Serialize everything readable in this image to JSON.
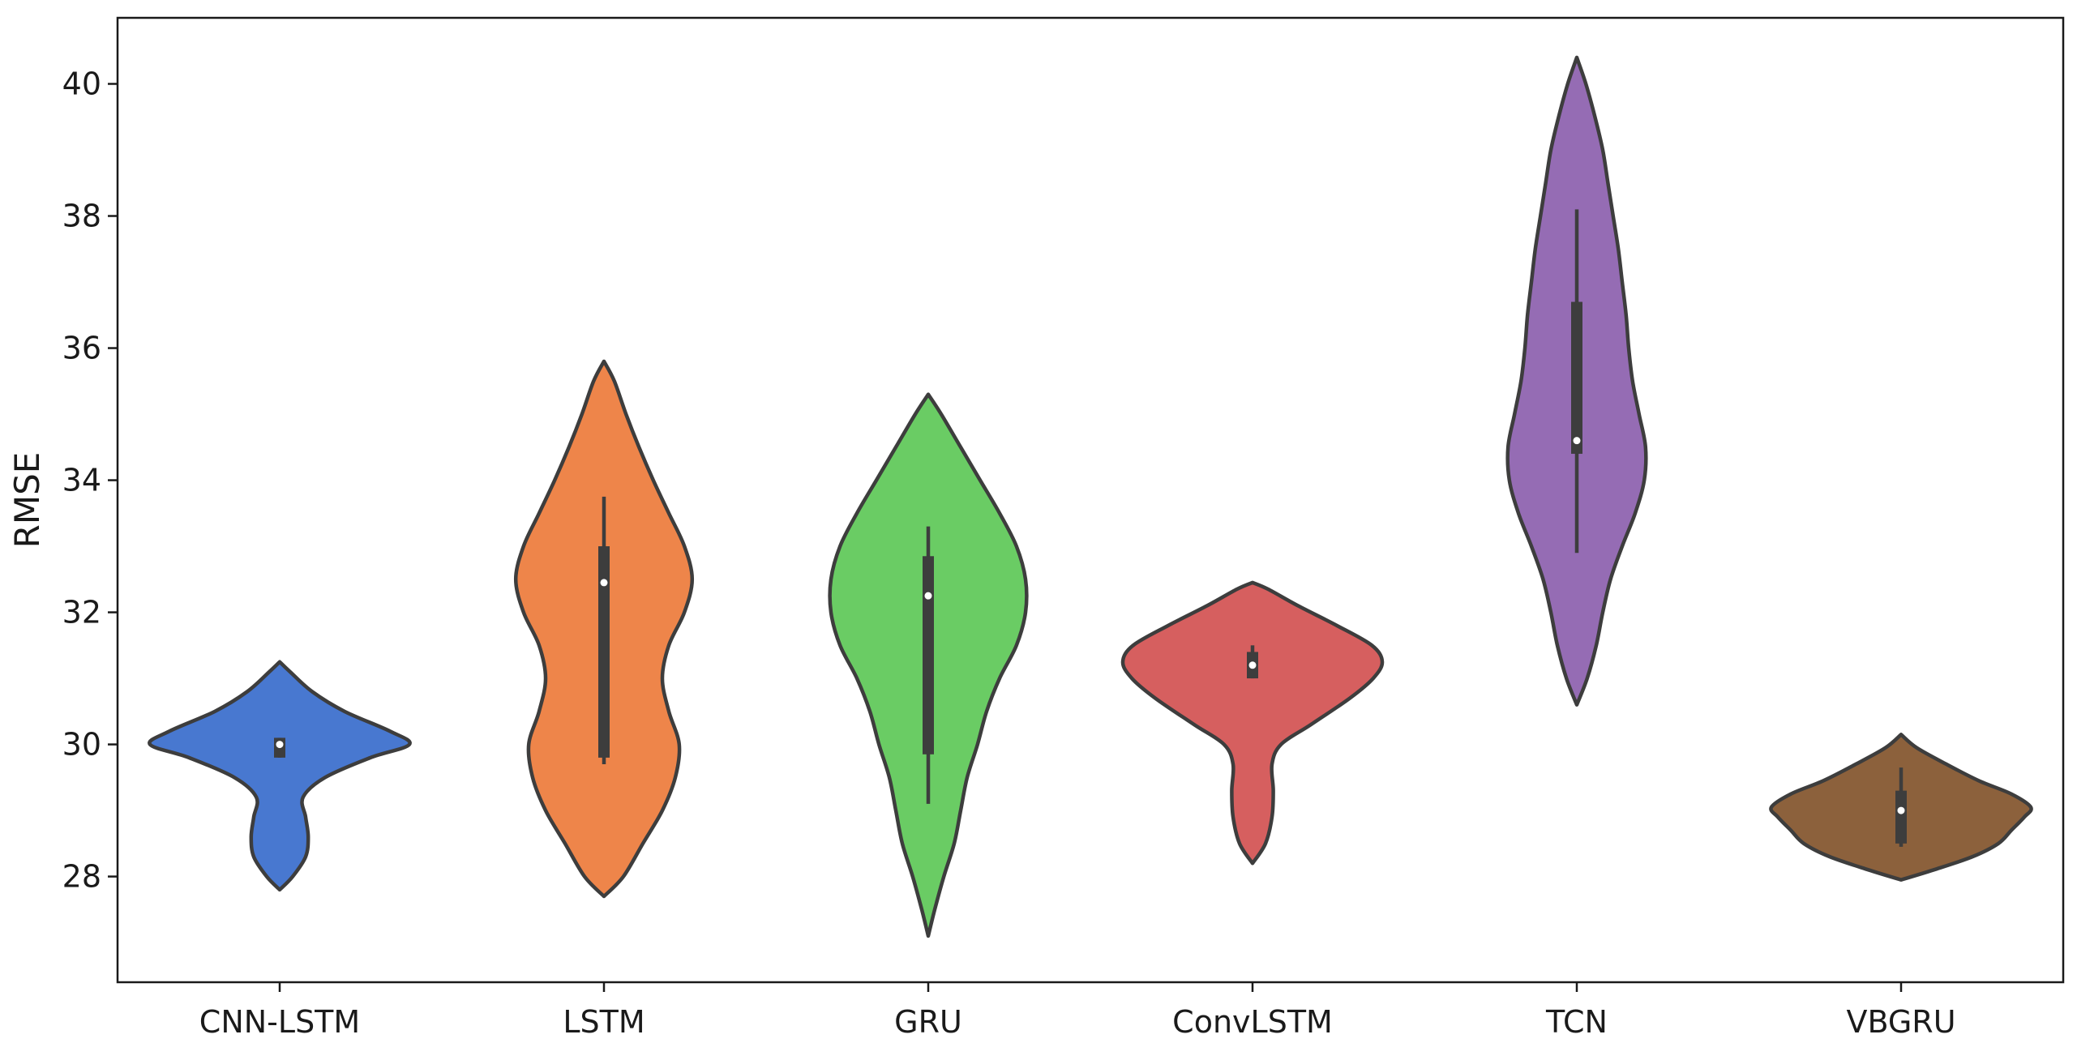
{
  "chart_data": {
    "type": "violin",
    "title": "",
    "xlabel": "",
    "ylabel": "RMSE",
    "ylim": [
      26.4,
      41.0
    ],
    "yticks": [
      28,
      30,
      32,
      34,
      36,
      38,
      40
    ],
    "grid": false,
    "categories": [
      "CNN-LSTM",
      "LSTM",
      "GRU",
      "ConvLSTM",
      "TCN",
      "VBGRU"
    ],
    "series": [
      {
        "category": "CNN-LSTM",
        "color": "#4878d0",
        "min": 27.8,
        "max": 31.25,
        "q1": 29.8,
        "median": 30.0,
        "q3": 30.1,
        "whisker_low": 29.8,
        "whisker_high": 30.1,
        "density": [
          [
            27.8,
            0
          ],
          [
            28.0,
            0.1
          ],
          [
            28.3,
            0.2
          ],
          [
            28.6,
            0.22
          ],
          [
            28.9,
            0.2
          ],
          [
            29.2,
            0.18
          ],
          [
            29.5,
            0.35
          ],
          [
            29.8,
            0.7
          ],
          [
            30.0,
            1.0
          ],
          [
            30.2,
            0.85
          ],
          [
            30.5,
            0.5
          ],
          [
            30.8,
            0.25
          ],
          [
            31.1,
            0.08
          ],
          [
            31.25,
            0
          ]
        ]
      },
      {
        "category": "LSTM",
        "color": "#ee854a",
        "min": 27.7,
        "max": 35.8,
        "q1": 29.8,
        "median": 32.45,
        "q3": 33.0,
        "whisker_low": 29.7,
        "whisker_high": 33.75,
        "density": [
          [
            27.7,
            0
          ],
          [
            28.0,
            0.15
          ],
          [
            28.5,
            0.3
          ],
          [
            29.0,
            0.45
          ],
          [
            29.5,
            0.55
          ],
          [
            30.0,
            0.58
          ],
          [
            30.5,
            0.5
          ],
          [
            31.0,
            0.45
          ],
          [
            31.5,
            0.5
          ],
          [
            32.0,
            0.62
          ],
          [
            32.5,
            0.68
          ],
          [
            33.0,
            0.62
          ],
          [
            33.5,
            0.5
          ],
          [
            34.0,
            0.38
          ],
          [
            34.5,
            0.27
          ],
          [
            35.0,
            0.17
          ],
          [
            35.5,
            0.08
          ],
          [
            35.8,
            0
          ]
        ]
      },
      {
        "category": "GRU",
        "color": "#6acc64",
        "min": 27.1,
        "max": 35.3,
        "q1": 29.85,
        "median": 32.25,
        "q3": 32.85,
        "whisker_low": 29.1,
        "whisker_high": 33.3,
        "density": [
          [
            27.1,
            0
          ],
          [
            27.5,
            0.05
          ],
          [
            28.0,
            0.12
          ],
          [
            28.5,
            0.2
          ],
          [
            29.0,
            0.25
          ],
          [
            29.5,
            0.3
          ],
          [
            30.0,
            0.38
          ],
          [
            30.5,
            0.45
          ],
          [
            31.0,
            0.55
          ],
          [
            31.5,
            0.68
          ],
          [
            32.0,
            0.75
          ],
          [
            32.5,
            0.75
          ],
          [
            33.0,
            0.68
          ],
          [
            33.5,
            0.55
          ],
          [
            34.0,
            0.4
          ],
          [
            34.5,
            0.25
          ],
          [
            35.0,
            0.1
          ],
          [
            35.3,
            0
          ]
        ]
      },
      {
        "category": "ConvLSTM",
        "color": "#d65f5f",
        "min": 28.2,
        "max": 32.45,
        "q1": 31.0,
        "median": 31.2,
        "q3": 31.4,
        "whisker_low": 31.0,
        "whisker_high": 31.5,
        "density": [
          [
            28.2,
            0
          ],
          [
            28.5,
            0.1
          ],
          [
            28.9,
            0.15
          ],
          [
            29.3,
            0.16
          ],
          [
            29.7,
            0.15
          ],
          [
            30.0,
            0.22
          ],
          [
            30.3,
            0.45
          ],
          [
            30.7,
            0.75
          ],
          [
            31.0,
            0.93
          ],
          [
            31.25,
            1.0
          ],
          [
            31.5,
            0.92
          ],
          [
            31.8,
            0.65
          ],
          [
            32.1,
            0.35
          ],
          [
            32.35,
            0.12
          ],
          [
            32.45,
            0
          ]
        ]
      },
      {
        "category": "TCN",
        "color": "#956cb4",
        "min": 30.6,
        "max": 40.4,
        "q1": 34.4,
        "median": 34.6,
        "q3": 36.7,
        "whisker_low": 32.9,
        "whisker_high": 38.1,
        "density": [
          [
            30.6,
            0
          ],
          [
            31.0,
            0.08
          ],
          [
            31.5,
            0.15
          ],
          [
            32.0,
            0.2
          ],
          [
            32.5,
            0.26
          ],
          [
            33.0,
            0.35
          ],
          [
            33.5,
            0.45
          ],
          [
            34.0,
            0.52
          ],
          [
            34.5,
            0.53
          ],
          [
            35.0,
            0.48
          ],
          [
            35.5,
            0.43
          ],
          [
            36.0,
            0.4
          ],
          [
            36.5,
            0.38
          ],
          [
            37.0,
            0.35
          ],
          [
            37.5,
            0.32
          ],
          [
            38.0,
            0.28
          ],
          [
            38.5,
            0.24
          ],
          [
            39.0,
            0.2
          ],
          [
            39.5,
            0.14
          ],
          [
            40.0,
            0.07
          ],
          [
            40.4,
            0
          ]
        ]
      },
      {
        "category": "VBGRU",
        "color": "#8c613c",
        "min": 27.95,
        "max": 30.15,
        "q1": 28.5,
        "median": 29.0,
        "q3": 29.3,
        "whisker_low": 28.45,
        "whisker_high": 29.65,
        "density": [
          [
            27.95,
            0
          ],
          [
            28.1,
            0.25
          ],
          [
            28.3,
            0.55
          ],
          [
            28.5,
            0.75
          ],
          [
            28.7,
            0.85
          ],
          [
            28.9,
            0.95
          ],
          [
            29.05,
            1.0
          ],
          [
            29.25,
            0.85
          ],
          [
            29.45,
            0.6
          ],
          [
            29.7,
            0.35
          ],
          [
            29.95,
            0.12
          ],
          [
            30.15,
            0
          ]
        ]
      }
    ]
  }
}
